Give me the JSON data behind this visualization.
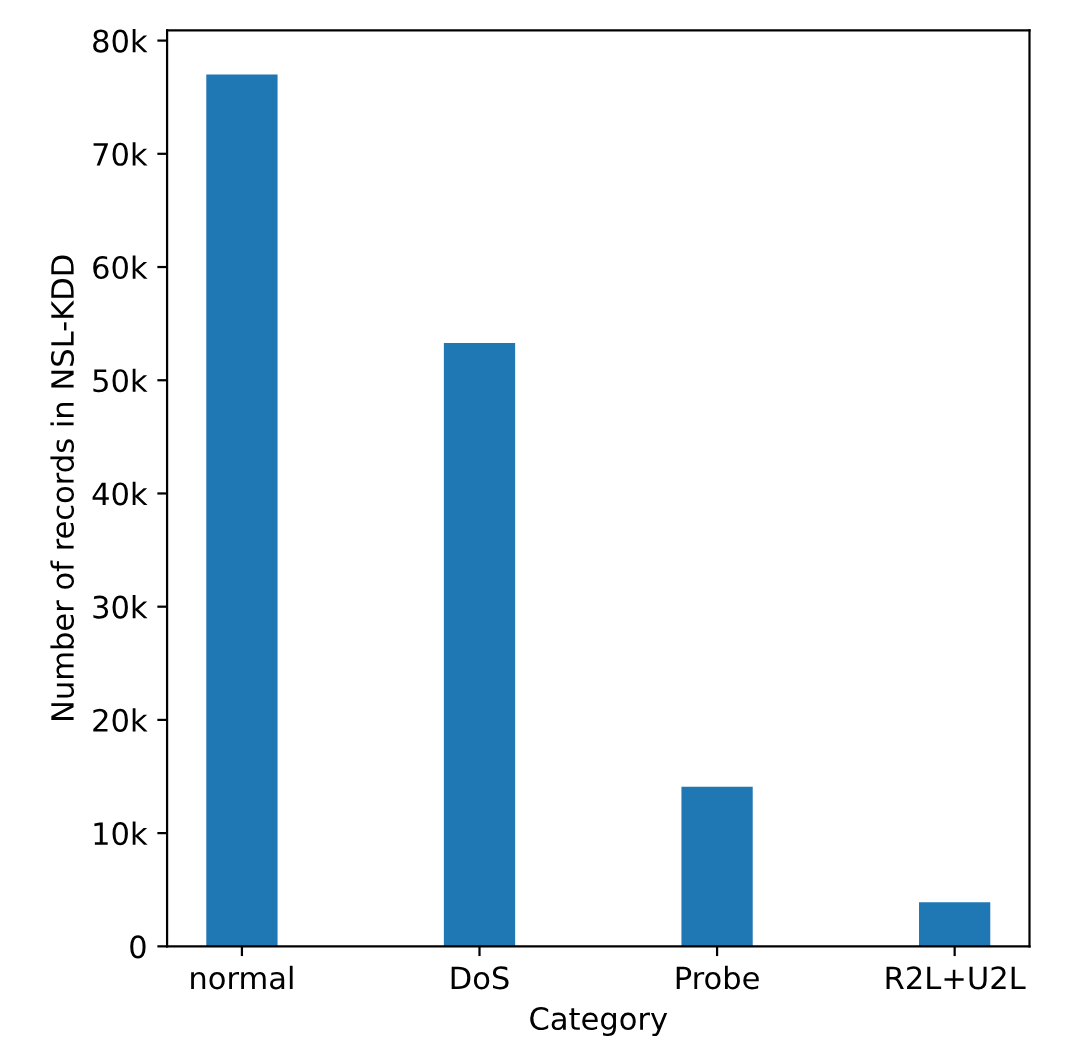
{
  "chart_data": {
    "type": "bar",
    "xlabel": "Category",
    "ylabel": "Number of records in NSL-KDD",
    "categories": [
      "normal",
      "DoS",
      "Probe",
      "R2L+U2L"
    ],
    "values": [
      77000,
      53300,
      14100,
      3900
    ],
    "color": "#1f77b4",
    "ylim": [
      0,
      80900
    ],
    "yticks": [
      0,
      {
        "value": 10000,
        "label": "10k"
      },
      {
        "value": 20000,
        "label": "20k"
      },
      {
        "value": 30000,
        "label": "30k"
      },
      {
        "value": 40000,
        "label": "40k"
      },
      {
        "value": 50000,
        "label": "50k"
      },
      {
        "value": 60000,
        "label": "60k"
      },
      {
        "value": 70000,
        "label": "70k"
      },
      {
        "value": 80000,
        "label": "80k"
      }
    ],
    "grid": false,
    "legend": false
  }
}
